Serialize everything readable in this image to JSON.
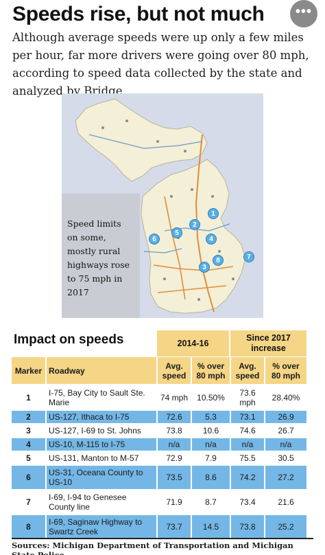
{
  "header": {
    "title": "Speeds rise, but not much",
    "more_label": "•••",
    "subtitle": "Although average speeds were up only a few miles per hour, far more drivers were going over 80 mph, according to speed data collected by the state and analyzed by Bridge."
  },
  "map": {
    "callout": "Speed limits on some, mostly rural highways rose to 75 mph in 2017",
    "markers": [
      "1",
      "2",
      "3",
      "4",
      "5",
      "6",
      "7",
      "8"
    ],
    "colors": {
      "water": "#d5dbe8",
      "land": "#f4efd7",
      "road": "#e08c3a",
      "marker": "#5aaee6"
    }
  },
  "impact": {
    "heading": "Impact on speeds",
    "group_2014": "2014-16",
    "group_2017": "Since 2017 increase",
    "columns": {
      "marker": "Marker",
      "roadway": "Roadway",
      "avg_2014": "Avg. speed",
      "over80_2014": "% over 80 mph",
      "avg_2017": "Avg. speed",
      "over80_2017": "% over 80 mph"
    },
    "rows": [
      {
        "marker": "1",
        "roadway": "I-75, Bay City to Sault Ste. Marie",
        "avg_2014": "74 mph",
        "over80_2014": "10.50%",
        "avg_2017": "73.6 mph",
        "over80_2017": "28.40%"
      },
      {
        "marker": "2",
        "roadway": "US-127, Ithaca to I-75",
        "avg_2014": "72.6",
        "over80_2014": "5.3",
        "avg_2017": "73.1",
        "over80_2017": "26.9"
      },
      {
        "marker": "3",
        "roadway": "US-127, I-69 to St. Johns",
        "avg_2014": "73.8",
        "over80_2014": "10.6",
        "avg_2017": "74.6",
        "over80_2017": "26.7"
      },
      {
        "marker": "4",
        "roadway": "US-10, M-115 to I-75",
        "avg_2014": "n/a",
        "over80_2014": "n/a",
        "avg_2017": "n/a",
        "over80_2017": "n/a"
      },
      {
        "marker": "5",
        "roadway": "US-131, Manton to  M-57",
        "avg_2014": "72.9",
        "over80_2014": "7.9",
        "avg_2017": "75.5",
        "over80_2017": "30.5"
      },
      {
        "marker": "6",
        "roadway": "US-31, Oceana County to US-10",
        "avg_2014": "73.5",
        "over80_2014": "8.6",
        "avg_2017": "74.2",
        "over80_2017": "27.2"
      },
      {
        "marker": "7",
        "roadway": "I-69, I-94 to Genesee County line",
        "avg_2014": "71.9",
        "over80_2014": "8.7",
        "avg_2017": "73.4",
        "over80_2017": "21.6"
      },
      {
        "marker": "8",
        "roadway": "I-69, Saginaw Highway to Swartz Creek",
        "avg_2014": "73.7",
        "over80_2014": "14.5",
        "avg_2017": "73.8",
        "over80_2017": "25.2"
      }
    ]
  },
  "sources": "Sources: Michigan Department of Transportation and Michigan State Police"
}
